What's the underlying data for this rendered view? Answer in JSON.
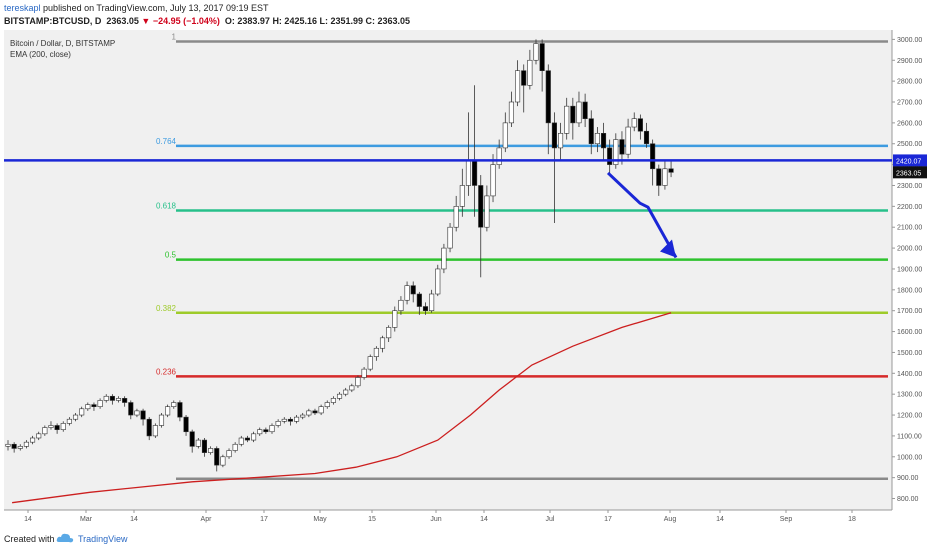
{
  "header": {
    "user": "tereskapl",
    "published": "published on TradingView.com, July 13, 2017 09:19 EST",
    "symbol": "BITSTAMP:BTCUSD, D",
    "last": "2363.05",
    "change": "▼ −24.95 (−1.04%)",
    "open": "O: 2383.97",
    "high": "H: 2425.16",
    "low": "L: 2351.99",
    "close": "C: 2363.05"
  },
  "legend": {
    "title": "Bitcoin / Dollar, D, BITSTAMP",
    "indicator": "EMA (200, close)"
  },
  "footer": {
    "created_with": "Created with",
    "brand": "TradingView"
  },
  "colors": {
    "background": "#f0f0f0",
    "up": "#ffffff",
    "down": "#000000",
    "ema": "#cc1f1f",
    "horizontal_line": "#1a27d6",
    "arrow": "#1a27d6"
  },
  "chart_data": {
    "type": "candlestick",
    "y_axis": {
      "min": 800,
      "max": 3000,
      "step": 100
    },
    "x_ticks": [
      "14",
      "Mar",
      "14",
      "Apr",
      "17",
      "May",
      "15",
      "Jun",
      "14",
      "Jul",
      "17",
      "Aug",
      "14",
      "Sep",
      "18"
    ],
    "fib_levels": [
      {
        "label": "1",
        "value": 2990,
        "color": "#8a8a8a"
      },
      {
        "label": "0.764",
        "value": 2490,
        "color": "#3d9be0"
      },
      {
        "label": "0.618",
        "value": 2180,
        "color": "#27c08a"
      },
      {
        "label": "0.5",
        "value": 1945,
        "color": "#2ec22e"
      },
      {
        "label": "0.382",
        "value": 1690,
        "color": "#9ecb2a"
      },
      {
        "label": "0.236",
        "value": 1385,
        "color": "#d62a2a"
      },
      {
        "label": "",
        "value": 895,
        "color": "#8a8a8a"
      }
    ],
    "horizontal_line": {
      "value": 2420.07,
      "label": "2420.07"
    },
    "last_price_label": "2363.05",
    "ema_200": [
      [
        1,
        780
      ],
      [
        20,
        830
      ],
      [
        45,
        880
      ],
      [
        60,
        900
      ],
      [
        75,
        920
      ],
      [
        85,
        950
      ],
      [
        95,
        1000
      ],
      [
        105,
        1080
      ],
      [
        113,
        1200
      ],
      [
        120,
        1320
      ],
      [
        128,
        1440
      ],
      [
        138,
        1530
      ],
      [
        150,
        1620
      ],
      [
        162,
        1690
      ]
    ],
    "candles": [
      [
        1050,
        1060,
        1030,
        1080
      ],
      [
        1060,
        1040,
        1020,
        1070
      ],
      [
        1040,
        1050,
        1030,
        1060
      ],
      [
        1050,
        1070,
        1040,
        1080
      ],
      [
        1070,
        1090,
        1060,
        1100
      ],
      [
        1090,
        1110,
        1080,
        1120
      ],
      [
        1110,
        1140,
        1100,
        1150
      ],
      [
        1140,
        1150,
        1130,
        1170
      ],
      [
        1150,
        1130,
        1110,
        1160
      ],
      [
        1130,
        1160,
        1120,
        1170
      ],
      [
        1160,
        1180,
        1150,
        1190
      ],
      [
        1180,
        1200,
        1170,
        1210
      ],
      [
        1200,
        1230,
        1190,
        1240
      ],
      [
        1230,
        1250,
        1220,
        1260
      ],
      [
        1250,
        1240,
        1220,
        1260
      ],
      [
        1240,
        1270,
        1230,
        1280
      ],
      [
        1270,
        1290,
        1260,
        1300
      ],
      [
        1290,
        1270,
        1250,
        1300
      ],
      [
        1270,
        1280,
        1260,
        1290
      ],
      [
        1280,
        1260,
        1240,
        1290
      ],
      [
        1260,
        1200,
        1180,
        1270
      ],
      [
        1200,
        1220,
        1190,
        1230
      ],
      [
        1220,
        1180,
        1150,
        1230
      ],
      [
        1180,
        1100,
        1080,
        1190
      ],
      [
        1100,
        1150,
        1090,
        1160
      ],
      [
        1150,
        1200,
        1140,
        1210
      ],
      [
        1200,
        1240,
        1190,
        1250
      ],
      [
        1240,
        1260,
        1230,
        1270
      ],
      [
        1260,
        1190,
        1170,
        1270
      ],
      [
        1190,
        1120,
        1100,
        1200
      ],
      [
        1120,
        1050,
        1020,
        1130
      ],
      [
        1050,
        1080,
        1040,
        1090
      ],
      [
        1080,
        1020,
        1000,
        1090
      ],
      [
        1020,
        1040,
        1010,
        1050
      ],
      [
        1040,
        960,
        930,
        1050
      ],
      [
        960,
        1000,
        950,
        1010
      ],
      [
        1000,
        1030,
        990,
        1040
      ],
      [
        1030,
        1060,
        1020,
        1070
      ],
      [
        1060,
        1090,
        1050,
        1100
      ],
      [
        1090,
        1080,
        1070,
        1100
      ],
      [
        1080,
        1110,
        1070,
        1120
      ],
      [
        1110,
        1130,
        1100,
        1140
      ],
      [
        1130,
        1120,
        1110,
        1140
      ],
      [
        1120,
        1150,
        1110,
        1160
      ],
      [
        1150,
        1170,
        1140,
        1180
      ],
      [
        1170,
        1180,
        1160,
        1190
      ],
      [
        1180,
        1170,
        1150,
        1190
      ],
      [
        1170,
        1190,
        1160,
        1200
      ],
      [
        1190,
        1200,
        1180,
        1210
      ],
      [
        1200,
        1220,
        1190,
        1230
      ],
      [
        1220,
        1210,
        1200,
        1230
      ],
      [
        1210,
        1240,
        1200,
        1250
      ],
      [
        1240,
        1260,
        1230,
        1270
      ],
      [
        1260,
        1280,
        1250,
        1290
      ],
      [
        1280,
        1300,
        1270,
        1310
      ],
      [
        1300,
        1320,
        1290,
        1330
      ],
      [
        1320,
        1340,
        1310,
        1350
      ],
      [
        1340,
        1380,
        1330,
        1390
      ],
      [
        1380,
        1420,
        1370,
        1430
      ],
      [
        1420,
        1480,
        1410,
        1490
      ],
      [
        1480,
        1520,
        1460,
        1530
      ],
      [
        1520,
        1570,
        1500,
        1580
      ],
      [
        1570,
        1620,
        1550,
        1630
      ],
      [
        1620,
        1700,
        1600,
        1720
      ],
      [
        1700,
        1750,
        1680,
        1770
      ],
      [
        1750,
        1820,
        1730,
        1840
      ],
      [
        1820,
        1780,
        1740,
        1840
      ],
      [
        1780,
        1720,
        1680,
        1790
      ],
      [
        1720,
        1700,
        1680,
        1740
      ],
      [
        1700,
        1780,
        1690,
        1800
      ],
      [
        1780,
        1900,
        1770,
        1920
      ],
      [
        1900,
        2000,
        1880,
        2020
      ],
      [
        2000,
        2100,
        1980,
        2120
      ],
      [
        2100,
        2200,
        2080,
        2250
      ],
      [
        2200,
        2300,
        2150,
        2380
      ],
      [
        2300,
        2420,
        2250,
        2650
      ],
      [
        2420,
        2300,
        2150,
        2780
      ],
      [
        2300,
        2100,
        1860,
        2350
      ],
      [
        2100,
        2250,
        2080,
        2300
      ],
      [
        2250,
        2400,
        2220,
        2450
      ],
      [
        2400,
        2480,
        2380,
        2520
      ],
      [
        2480,
        2600,
        2460,
        2650
      ],
      [
        2600,
        2700,
        2580,
        2750
      ],
      [
        2700,
        2850,
        2680,
        2900
      ],
      [
        2850,
        2780,
        2650,
        2880
      ],
      [
        2780,
        2900,
        2760,
        2950
      ],
      [
        2900,
        2980,
        2880,
        3000
      ],
      [
        2980,
        2850,
        2750,
        3000
      ],
      [
        2850,
        2600,
        2450,
        2880
      ],
      [
        2600,
        2480,
        2120,
        2650
      ],
      [
        2480,
        2550,
        2420,
        2600
      ],
      [
        2550,
        2680,
        2520,
        2720
      ],
      [
        2680,
        2600,
        2520,
        2720
      ],
      [
        2600,
        2700,
        2580,
        2750
      ],
      [
        2700,
        2620,
        2580,
        2740
      ],
      [
        2620,
        2500,
        2450,
        2660
      ],
      [
        2500,
        2550,
        2460,
        2580
      ],
      [
        2550,
        2480,
        2420,
        2600
      ],
      [
        2480,
        2400,
        2350,
        2520
      ],
      [
        2400,
        2520,
        2380,
        2550
      ],
      [
        2520,
        2450,
        2400,
        2560
      ],
      [
        2450,
        2580,
        2430,
        2620
      ],
      [
        2580,
        2620,
        2560,
        2650
      ],
      [
        2620,
        2560,
        2520,
        2640
      ],
      [
        2560,
        2500,
        2480,
        2600
      ],
      [
        2500,
        2380,
        2300,
        2520
      ],
      [
        2380,
        2300,
        2250,
        2400
      ],
      [
        2300,
        2380,
        2280,
        2420
      ],
      [
        2380,
        2363,
        2340,
        2420
      ]
    ],
    "arrow": {
      "from": [
        174,
        2380
      ],
      "to": [
        194,
        1960
      ]
    }
  }
}
